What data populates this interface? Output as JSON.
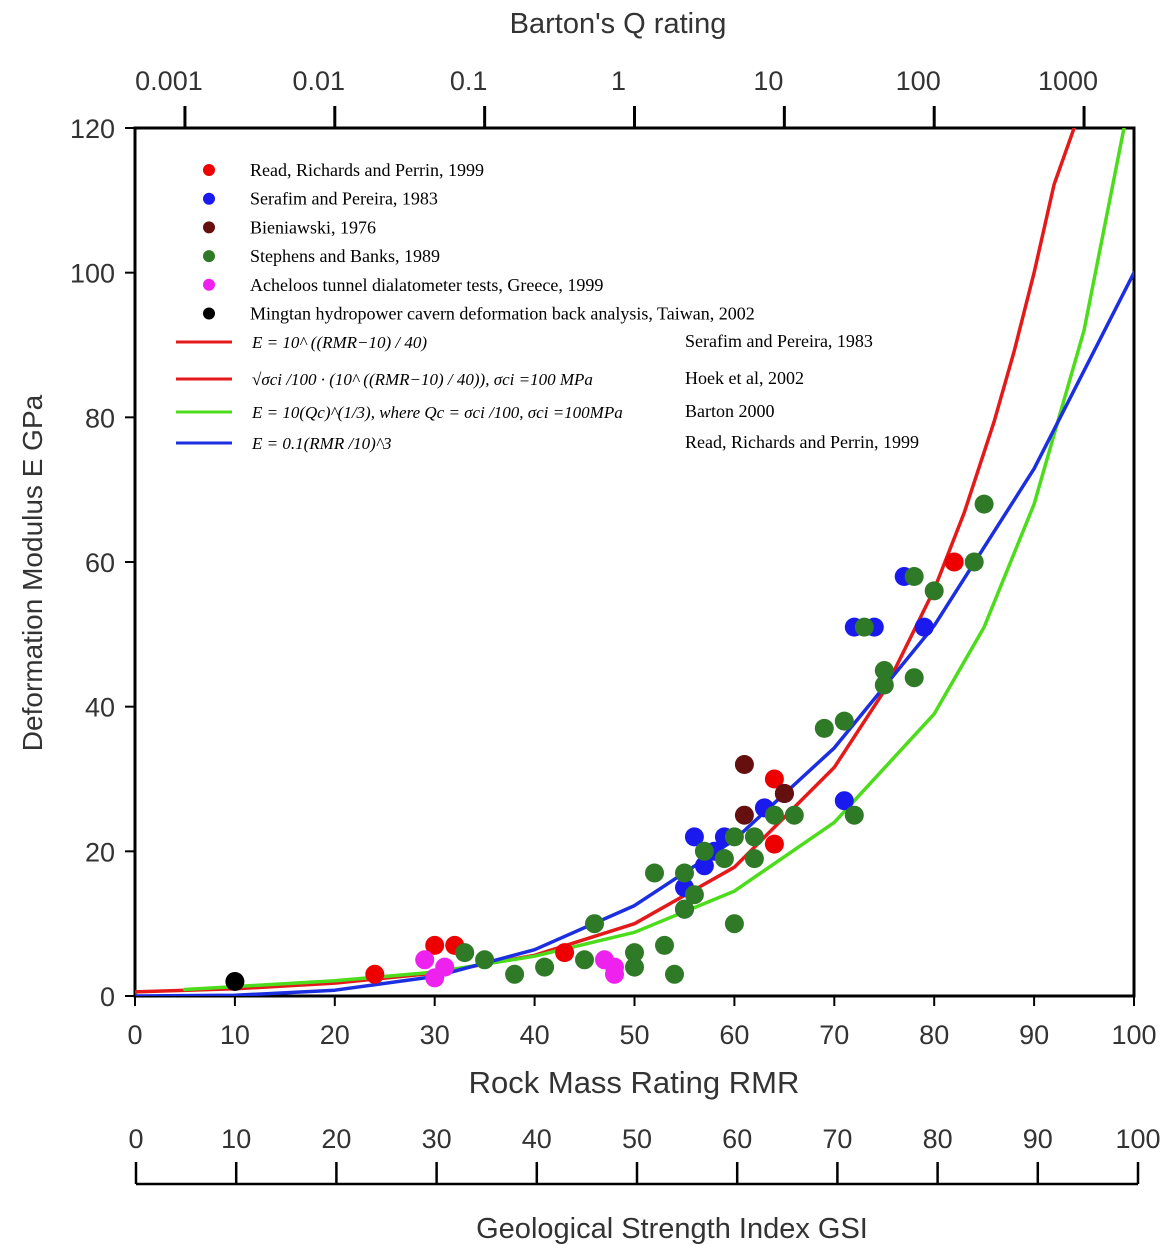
{
  "chart_data": {
    "type": "scatter",
    "title": "",
    "xlabel": "Rock Mass Rating RMR",
    "ylabel": "Deformation Modulus E GPa",
    "top_axis_label": "Barton's Q rating",
    "bottom_axis2_label": "Geological Strength Index GSI",
    "xlim": [
      0,
      100
    ],
    "ylim": [
      0,
      120
    ],
    "x_ticks": [
      "0",
      "10",
      "20",
      "30",
      "40",
      "50",
      "60",
      "70",
      "80",
      "90",
      "100"
    ],
    "y_ticks": [
      "0",
      "20",
      "40",
      "60",
      "80",
      "100",
      "120"
    ],
    "q_ticks": [
      "0.001",
      "0.01",
      "0.1",
      "1",
      "10",
      "100",
      "1000"
    ],
    "gsi_ticks": [
      "0",
      "10",
      "20",
      "30",
      "40",
      "50",
      "60",
      "70",
      "80",
      "90",
      "100"
    ],
    "grid": false,
    "legend_position": "top-left inside plot",
    "point_series": [
      {
        "name": "Read, Richards and Perrin, 1999",
        "color": "#ee0000",
        "points": [
          [
            24,
            3
          ],
          [
            30,
            7
          ],
          [
            32,
            7
          ],
          [
            43,
            6
          ],
          [
            64,
            30
          ],
          [
            65,
            28
          ],
          [
            64,
            21
          ],
          [
            82,
            60
          ]
        ]
      },
      {
        "name": "Serafim and Pereira, 1983",
        "color": "#1a1aee",
        "points": [
          [
            55,
            15
          ],
          [
            55,
            12
          ],
          [
            56,
            22
          ],
          [
            57,
            18
          ],
          [
            58,
            20
          ],
          [
            59,
            22
          ],
          [
            63,
            26
          ],
          [
            65,
            28
          ],
          [
            71,
            27
          ],
          [
            72,
            51
          ],
          [
            74,
            51
          ],
          [
            77,
            58
          ],
          [
            79,
            51
          ]
        ]
      },
      {
        "name": "Bieniawski, 1976",
        "color": "#660f0f",
        "points": [
          [
            61,
            32
          ],
          [
            61,
            25
          ],
          [
            65,
            28
          ]
        ]
      },
      {
        "name": "Stephens and Banks, 1989",
        "color": "#2f7a26",
        "points": [
          [
            33,
            6
          ],
          [
            35,
            5
          ],
          [
            38,
            3
          ],
          [
            41,
            4
          ],
          [
            45,
            5
          ],
          [
            46,
            10
          ],
          [
            50,
            6
          ],
          [
            50,
            4
          ],
          [
            52,
            17
          ],
          [
            53,
            7
          ],
          [
            54,
            3
          ],
          [
            55,
            12
          ],
          [
            55,
            17
          ],
          [
            56,
            14
          ],
          [
            57,
            20
          ],
          [
            59,
            19
          ],
          [
            60,
            10
          ],
          [
            60,
            22
          ],
          [
            62,
            22
          ],
          [
            62,
            19
          ],
          [
            64,
            25
          ],
          [
            66,
            25
          ],
          [
            69,
            37
          ],
          [
            71,
            38
          ],
          [
            72,
            25
          ],
          [
            73,
            51
          ],
          [
            75,
            45
          ],
          [
            75,
            43
          ],
          [
            78,
            58
          ],
          [
            78,
            44
          ],
          [
            80,
            56
          ],
          [
            84,
            60
          ],
          [
            85,
            68
          ]
        ]
      },
      {
        "name": "Acheloos tunnel dialatometer tests, Greece, 1999",
        "color": "#ee22ee",
        "points": [
          [
            29,
            5
          ],
          [
            30,
            2.5
          ],
          [
            31,
            4
          ],
          [
            47,
            5
          ],
          [
            48,
            4
          ],
          [
            48,
            3
          ]
        ]
      },
      {
        "name": "Mingtan hydropower cavern deformation back analysis, Taiwan, 2002",
        "color": "#000000",
        "points": [
          [
            10,
            2
          ]
        ]
      }
    ],
    "curves": [
      {
        "label": "E = 10^ ((RMR−10) / 40)",
        "source": "Serafim and Pereira, 1983",
        "color": "#e41a1a",
        "x": [
          0,
          10,
          20,
          30,
          40,
          50,
          60,
          70,
          75,
          80,
          83,
          86
        ],
        "y": [
          0.56,
          1.0,
          1.78,
          3.16,
          5.62,
          10.0,
          17.8,
          31.6,
          42.2,
          56.2,
          66.8,
          79.4
        ]
      },
      {
        "label": "√σci /100 · (10^ ((RMR−10) / 40)),   σci =100 MPa",
        "source": "Hoek et al, 2002",
        "color": "#e41a1a",
        "x": [
          86,
          88,
          90,
          92,
          94
        ],
        "y": [
          79.4,
          89.1,
          100.0,
          112.2,
          120.0
        ]
      },
      {
        "label": "E = 10(Qc)^(1/3), where Qc = σci /100, σci =100MPa",
        "source": "Barton 2000",
        "color": "#4cdc1c",
        "x": [
          5,
          10,
          20,
          30,
          40,
          50,
          60,
          70,
          80,
          85,
          90,
          95,
          99
        ],
        "y": [
          0.9,
          1.3,
          2.1,
          3.3,
          5.5,
          8.8,
          14.5,
          24.0,
          39.0,
          51.0,
          68.0,
          92.0,
          120.0
        ]
      },
      {
        "label": "E = 0.1(RMR /10)^3",
        "source": "Read, Richards and Perrin, 1999",
        "color": "#1b2fe0",
        "x": [
          0,
          10,
          20,
          30,
          40,
          50,
          60,
          70,
          80,
          90,
          100
        ],
        "y": [
          0.0,
          0.1,
          0.8,
          2.7,
          6.4,
          12.5,
          21.6,
          34.3,
          51.2,
          72.9,
          100.0
        ]
      }
    ]
  }
}
